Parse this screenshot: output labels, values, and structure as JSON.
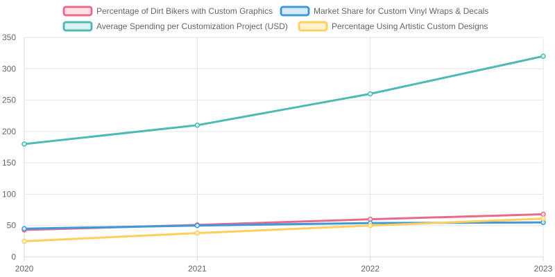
{
  "chart_data": {
    "type": "line",
    "title": "",
    "xlabel": "",
    "ylabel": "",
    "x": [
      "2020",
      "2021",
      "2022",
      "2023"
    ],
    "ylim": [
      0,
      350
    ],
    "yticks": [
      "0",
      "50",
      "100",
      "150",
      "200",
      "250",
      "300",
      "350"
    ],
    "grid": true,
    "legend_position": "top",
    "series": [
      {
        "name": "Percentage of Dirt Bikers with Custom Graphics",
        "values": [
          43,
          51,
          60,
          68
        ],
        "color": "#ea6a8a",
        "fill": "#ffe0e6"
      },
      {
        "name": "Market Share for Custom Vinyl Wraps & Decals",
        "values": [
          45,
          50,
          54,
          55
        ],
        "color": "#3f99d8",
        "fill": "#d7ecfb"
      },
      {
        "name": "Average Spending per Customization Project (USD)",
        "values": [
          180,
          210,
          260,
          320
        ],
        "color": "#4dbab6",
        "fill": "#d9f2f1"
      },
      {
        "name": "Percentage Using Artistic Custom Designs",
        "values": [
          25,
          38,
          50,
          61
        ],
        "color": "#ffcf5e",
        "fill": "#fff2cc"
      }
    ]
  }
}
